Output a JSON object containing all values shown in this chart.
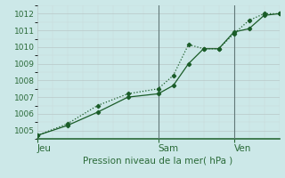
{
  "title": "Pression niveau de la mer( hPa )",
  "bg_color": "#cce8e8",
  "grid_major_color": "#b8c8c8",
  "grid_minor_color": "#c8d8d8",
  "line_color": "#1a5c28",
  "ylim": [
    1004.5,
    1012.5
  ],
  "yticks": [
    1005,
    1006,
    1007,
    1008,
    1009,
    1010,
    1011,
    1012
  ],
  "day_labels": [
    "Jeu",
    "Sam",
    "Ven"
  ],
  "day_positions": [
    0.0,
    0.5,
    0.8125
  ],
  "vline_positions": [
    0.5,
    0.8125
  ],
  "series1_x": [
    0.0,
    0.125,
    0.25,
    0.375,
    0.5,
    0.5625,
    0.625,
    0.6875,
    0.75,
    0.8125,
    0.875,
    0.9375,
    1.0
  ],
  "series1_y": [
    1004.7,
    1005.4,
    1006.5,
    1007.2,
    1007.5,
    1008.3,
    1010.15,
    1009.9,
    1009.9,
    1010.8,
    1011.6,
    1012.0,
    1012.0
  ],
  "series2_x": [
    0.0,
    0.125,
    0.25,
    0.375,
    0.5,
    0.5625,
    0.625,
    0.6875,
    0.75,
    0.8125,
    0.875,
    0.9375,
    1.0
  ],
  "series2_y": [
    1004.7,
    1005.3,
    1006.1,
    1007.0,
    1007.2,
    1007.7,
    1009.0,
    1009.9,
    1009.9,
    1010.9,
    1011.1,
    1011.9,
    1012.0
  ],
  "xlabel_fontsize": 7.5,
  "ylabel_fontsize": 6.5,
  "tick_fontsize": 6.5,
  "axis_color": "#2a6a38",
  "spine_color": "#2a6a38"
}
